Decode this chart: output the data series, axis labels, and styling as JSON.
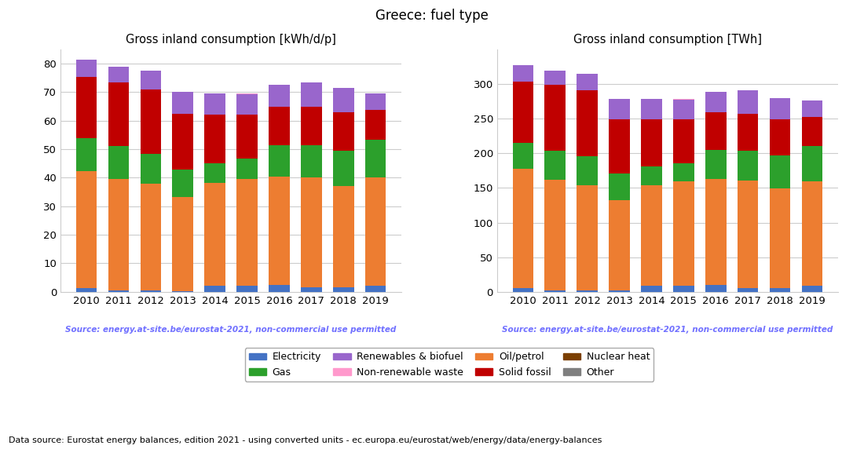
{
  "title": "Greece: fuel type",
  "years": [
    2010,
    2011,
    2012,
    2013,
    2014,
    2015,
    2016,
    2017,
    2018,
    2019
  ],
  "left_title": "Gross inland consumption [kWh/d/p]",
  "right_title": "Gross inland consumption [TWh]",
  "source_text": "Source: energy.at-site.be/eurostat-2021, non-commercial use permitted",
  "bottom_text": "Data source: Eurostat energy balances, edition 2021 - using converted units - ec.europa.eu/eurostat/web/energy/data/energy-balances",
  "fuel_types": [
    "Electricity",
    "Oil/petrol",
    "Gas",
    "Solid fossil",
    "Renewables & biofuel",
    "Nuclear heat",
    "Non-renewable waste",
    "Other"
  ],
  "colors": {
    "Electricity": "#4472c4",
    "Oil/petrol": "#ed7d31",
    "Gas": "#2ca02c",
    "Solid fossil": "#c00000",
    "Renewables & biofuel": "#9966cc",
    "Nuclear heat": "#7b3f00",
    "Non-renewable waste": "#ff99cc",
    "Other": "#7f7f7f"
  },
  "kWh_data": {
    "Electricity": [
      1.3,
      0.5,
      0.5,
      0.3,
      2.2,
      2.2,
      2.5,
      1.5,
      1.5,
      2.2
    ],
    "Oil/petrol": [
      41.0,
      39.0,
      37.5,
      33.0,
      36.0,
      37.5,
      38.0,
      38.5,
      35.5,
      38.0
    ],
    "Gas": [
      11.5,
      11.5,
      10.5,
      9.5,
      7.0,
      7.0,
      11.0,
      11.5,
      12.5,
      13.0
    ],
    "Solid fossil": [
      21.5,
      22.5,
      22.5,
      19.5,
      17.0,
      15.5,
      13.5,
      13.5,
      13.5,
      10.5
    ],
    "Renewables & biofuel": [
      6.0,
      5.5,
      6.5,
      7.7,
      7.5,
      7.0,
      7.5,
      8.5,
      8.5,
      6.0
    ],
    "Nuclear heat": [
      0.0,
      0.0,
      0.0,
      0.0,
      0.0,
      0.0,
      0.0,
      0.0,
      0.0,
      0.0
    ],
    "Non-renewable waste": [
      0.0,
      0.0,
      0.0,
      0.0,
      0.0,
      0.3,
      0.0,
      0.0,
      0.0,
      0.0
    ],
    "Other": [
      0.0,
      0.0,
      0.0,
      0.0,
      0.0,
      0.0,
      0.0,
      0.0,
      0.0,
      0.0
    ]
  },
  "TWh_data": {
    "Electricity": [
      5.5,
      2.0,
      2.0,
      1.5,
      9.0,
      9.0,
      10.0,
      6.0,
      6.0,
      9.0
    ],
    "Oil/petrol": [
      172.0,
      160.0,
      152.0,
      131.0,
      145.0,
      150.0,
      153.0,
      155.0,
      143.0,
      151.0
    ],
    "Gas": [
      38.0,
      42.0,
      42.0,
      38.0,
      27.0,
      27.0,
      42.0,
      43.0,
      48.0,
      50.0
    ],
    "Solid fossil": [
      88.0,
      95.0,
      95.0,
      78.0,
      68.0,
      63.0,
      54.0,
      53.0,
      52.0,
      42.0
    ],
    "Renewables & biofuel": [
      24.0,
      20.0,
      24.0,
      30.0,
      29.0,
      28.0,
      30.0,
      34.0,
      31.0,
      24.0
    ],
    "Nuclear heat": [
      0.0,
      0.0,
      0.0,
      0.0,
      0.0,
      0.0,
      0.0,
      0.0,
      0.0,
      0.0
    ],
    "Non-renewable waste": [
      0.0,
      0.0,
      0.0,
      0.0,
      0.0,
      1.0,
      0.0,
      0.0,
      0.0,
      0.0
    ],
    "Other": [
      0.0,
      0.0,
      0.0,
      0.0,
      0.0,
      0.0,
      0.0,
      0.0,
      0.0,
      0.0
    ]
  },
  "left_ylim": [
    0,
    85
  ],
  "right_ylim": [
    0,
    350
  ],
  "left_yticks": [
    0,
    10,
    20,
    30,
    40,
    50,
    60,
    70,
    80
  ],
  "right_yticks": [
    0,
    50,
    100,
    150,
    200,
    250,
    300
  ]
}
